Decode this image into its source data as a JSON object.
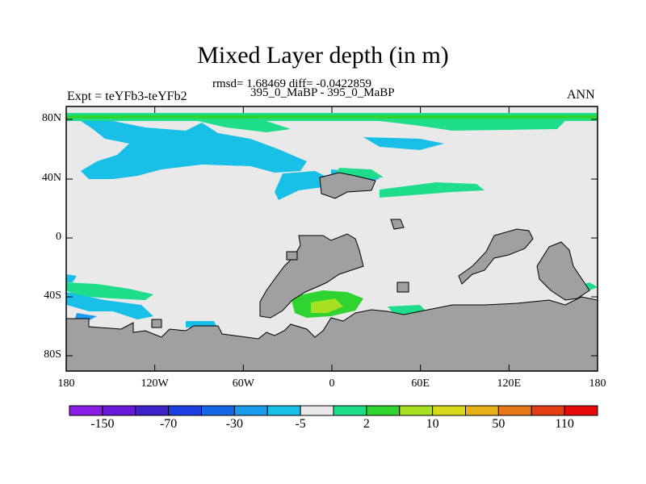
{
  "title": "Mixed Layer depth (in m)",
  "stats_line": "rmsd= 1.68469 diff= -0.0422859",
  "case_line": "395_0_MaBP - 395_0_MaBP",
  "left_label": "Expt = teYFb3-teYFb2",
  "right_label": "ANN",
  "map": {
    "lat_ticks": [
      "80N",
      "40N",
      "0",
      "40S",
      "80S"
    ],
    "lon_ticks": [
      "180",
      "120W",
      "60W",
      "0",
      "60E",
      "120E",
      "180"
    ],
    "land_color": "#a0a0a0",
    "background_color": "#e9e9e9"
  },
  "colorbar": {
    "colors": [
      "#8a1ee6",
      "#6a18d8",
      "#3a22c8",
      "#1a3ee0",
      "#1468e6",
      "#1a9cee",
      "#18c0e8",
      "#e9e9e9",
      "#1ede8c",
      "#30d430",
      "#a6e020",
      "#d8d818",
      "#e6b018",
      "#e67818",
      "#e63c14",
      "#e60a0a"
    ],
    "labels": [
      "-150",
      "-70",
      "-30",
      "-5",
      "2",
      "10",
      "50",
      "110"
    ]
  }
}
